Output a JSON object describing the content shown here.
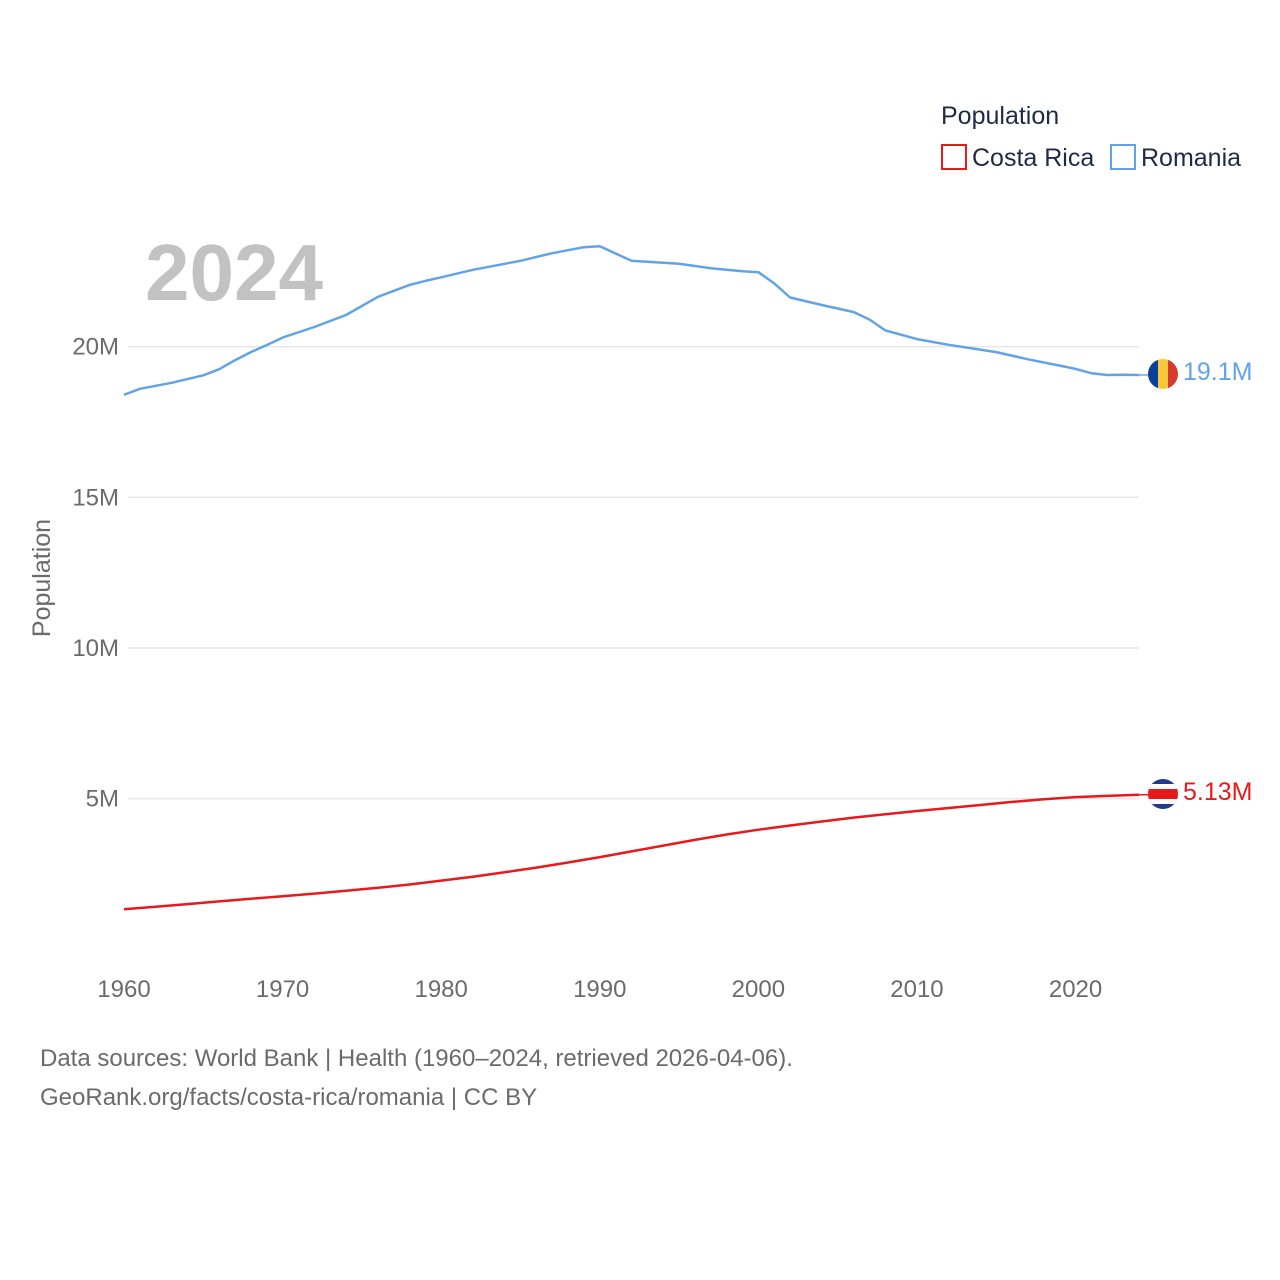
{
  "chart_data": {
    "type": "line",
    "title": "",
    "year_label": "2024",
    "xlabel": "",
    "ylabel": "Population",
    "xlim": [
      1960,
      2024
    ],
    "ylim": [
      0,
      25000000
    ],
    "x_ticks": [
      1960,
      1970,
      1980,
      1990,
      2000,
      2010,
      2020
    ],
    "x_tick_labels": [
      "1960",
      "1970",
      "1980",
      "1990",
      "2000",
      "2010",
      "2020"
    ],
    "y_ticks": [
      5000000,
      10000000,
      15000000,
      20000000
    ],
    "y_tick_labels": [
      "5M",
      "10M",
      "15M",
      "20M"
    ],
    "grid": true,
    "legend": {
      "title": "Population",
      "position": "top-right",
      "entries": [
        "Costa Rica",
        "Romania"
      ]
    },
    "series": [
      {
        "name": "Costa Rica",
        "color": "#e8191c",
        "end_label": "5.13M",
        "flag": "costa-rica-flag",
        "x": [
          1960,
          1962,
          1964,
          1966,
          1968,
          1970,
          1972,
          1974,
          1976,
          1978,
          1980,
          1982,
          1984,
          1986,
          1988,
          1990,
          1992,
          1994,
          1996,
          1998,
          2000,
          2002,
          2004,
          2006,
          2008,
          2010,
          2012,
          2014,
          2016,
          2018,
          2020,
          2022,
          2024
        ],
        "values": [
          1330000,
          1410000,
          1500000,
          1590000,
          1680000,
          1760000,
          1850000,
          1940000,
          2040000,
          2150000,
          2280000,
          2410000,
          2560000,
          2710000,
          2880000,
          3060000,
          3250000,
          3440000,
          3630000,
          3810000,
          3970000,
          4110000,
          4240000,
          4370000,
          4480000,
          4590000,
          4690000,
          4790000,
          4890000,
          4980000,
          5050000,
          5090000,
          5130000
        ]
      },
      {
        "name": "Romania",
        "color": "#62a3e7",
        "end_label": "19.1M",
        "flag": "romania-flag",
        "x": [
          1960,
          1961,
          1963,
          1965,
          1966,
          1967,
          1968,
          1969,
          1970,
          1972,
          1974,
          1976,
          1977,
          1978,
          1979,
          1980,
          1982,
          1985,
          1987,
          1989,
          1990,
          1992,
          1995,
          1997,
          1999,
          2000,
          2001,
          2002,
          2004,
          2006,
          2007,
          2008,
          2010,
          2012,
          2015,
          2017,
          2019,
          2020,
          2021,
          2022,
          2023,
          2024
        ],
        "values": [
          18400000,
          18600000,
          18800000,
          19050000,
          19250000,
          19550000,
          19820000,
          20050000,
          20300000,
          20650000,
          21050000,
          21650000,
          21850000,
          22050000,
          22180000,
          22300000,
          22550000,
          22850000,
          23100000,
          23300000,
          23330000,
          22850000,
          22750000,
          22600000,
          22500000,
          22470000,
          22100000,
          21630000,
          21380000,
          21150000,
          20900000,
          20540000,
          20250000,
          20060000,
          19820000,
          19580000,
          19370000,
          19260000,
          19120000,
          19060000,
          19070000,
          19060000
        ]
      }
    ]
  },
  "footer": {
    "line1": "Data sources: World Bank | Health (1960–2024, retrieved 2026-04-06).",
    "line2": "GeoRank.org/facts/costa-rica/romania | CC BY"
  }
}
